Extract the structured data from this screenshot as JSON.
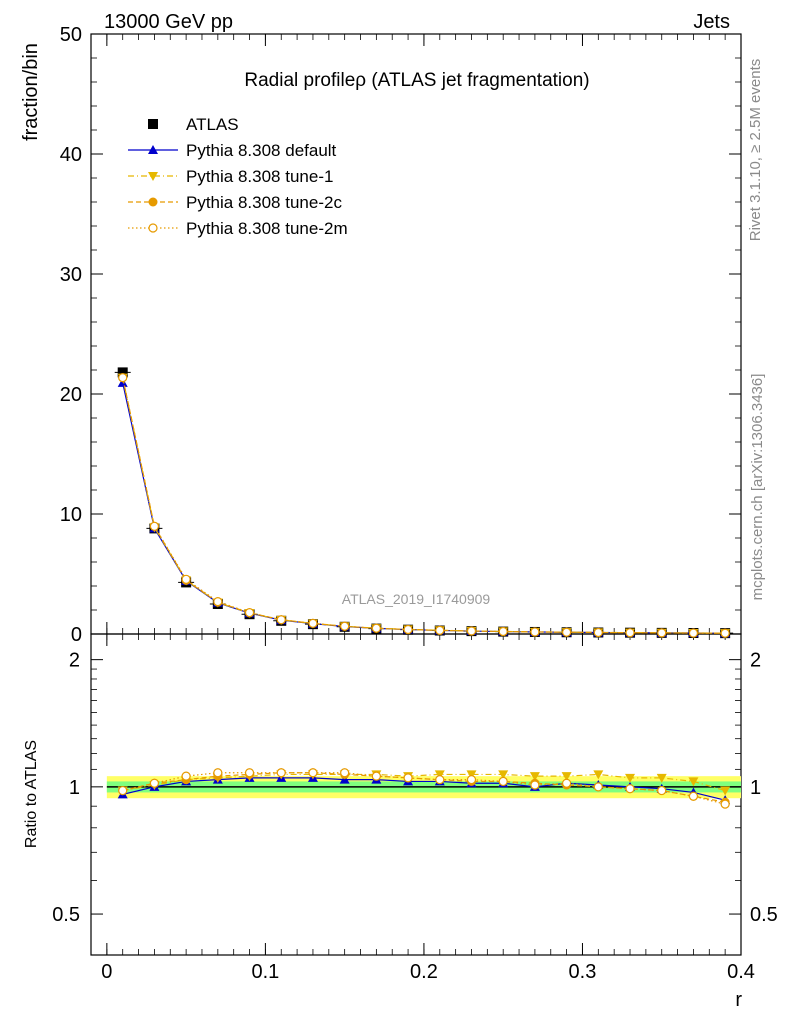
{
  "header": {
    "left": "13000 GeV pp",
    "right": "Jets"
  },
  "side_labels": {
    "rivet": "Rivet 3.1.10, ≥ 2.5M events",
    "mcplots": "mcplots.cern.ch [arXiv:1306.3436]"
  },
  "watermark": "ATLAS_2019_I1740909",
  "colors": {
    "atlas": "#000000",
    "default": "#0000cc",
    "tune1": "#e6b800",
    "tune2c": "#e69a00",
    "tune2m": "#e69a00",
    "band_inner": "#7fff7f",
    "band_outer": "#ffff66"
  },
  "chart_data": {
    "type": "scatter",
    "title": "Radial profileρ (ATLAS jet fragmentation)",
    "xlabel": "r",
    "ylabel": "fraction/bin",
    "ratio_ylabel": "Ratio to ATLAS",
    "xlim": [
      -0.01,
      0.4
    ],
    "ylim": [
      0,
      50
    ],
    "ratio_ylim": [
      0.4,
      2.3
    ],
    "ratio_scale": "log",
    "x_ticks": [
      "0",
      "0.1",
      "0.2",
      "0.3",
      "0.4"
    ],
    "y_ticks": [
      "0",
      "10",
      "20",
      "30",
      "40",
      "50"
    ],
    "ratio_ticks": [
      "0.5",
      "1",
      "2"
    ],
    "legend_position": "top-left",
    "x": [
      0.01,
      0.03,
      0.05,
      0.07,
      0.09,
      0.11,
      0.13,
      0.15,
      0.17,
      0.19,
      0.21,
      0.23,
      0.25,
      0.27,
      0.29,
      0.31,
      0.33,
      0.35,
      0.37,
      0.39
    ],
    "series": [
      {
        "name": "ATLAS",
        "key": "atlas",
        "marker": "square",
        "line": "none",
        "values": [
          21.8,
          8.8,
          4.3,
          2.5,
          1.65,
          1.1,
          0.82,
          0.6,
          0.45,
          0.36,
          0.29,
          0.24,
          0.2,
          0.17,
          0.145,
          0.125,
          0.11,
          0.095,
          0.083,
          0.072
        ],
        "band_inner": 0.03,
        "band_outer": 0.06
      },
      {
        "name": "Pythia 8.308 default",
        "key": "default",
        "marker": "triangle-up",
        "line": "solid",
        "ratio": [
          0.96,
          1.0,
          1.03,
          1.04,
          1.05,
          1.05,
          1.05,
          1.04,
          1.04,
          1.03,
          1.03,
          1.02,
          1.02,
          1.0,
          1.02,
          1.01,
          1.0,
          0.99,
          0.97,
          0.93
        ]
      },
      {
        "name": "Pythia 8.308 tune-1",
        "key": "tune1",
        "marker": "triangle-down",
        "line": "dashdot",
        "ratio": [
          0.98,
          1.01,
          1.04,
          1.05,
          1.06,
          1.07,
          1.07,
          1.07,
          1.07,
          1.06,
          1.07,
          1.07,
          1.07,
          1.06,
          1.06,
          1.07,
          1.05,
          1.05,
          1.03,
          0.98
        ]
      },
      {
        "name": "Pythia 8.308 tune-2c",
        "key": "tune2c",
        "marker": "circle",
        "line": "dashed",
        "ratio": [
          0.98,
          1.02,
          1.04,
          1.06,
          1.07,
          1.08,
          1.08,
          1.07,
          1.06,
          1.05,
          1.04,
          1.03,
          1.03,
          1.02,
          1.01,
          1.0,
          0.99,
          0.98,
          0.95,
          0.92
        ]
      },
      {
        "name": "Pythia 8.308 tune-2m",
        "key": "tune2m",
        "marker": "circle-open",
        "line": "dotted",
        "ratio": [
          0.98,
          1.02,
          1.06,
          1.08,
          1.08,
          1.08,
          1.08,
          1.08,
          1.06,
          1.05,
          1.04,
          1.04,
          1.03,
          1.01,
          1.02,
          1.0,
          0.99,
          0.98,
          0.95,
          0.91
        ]
      }
    ]
  }
}
